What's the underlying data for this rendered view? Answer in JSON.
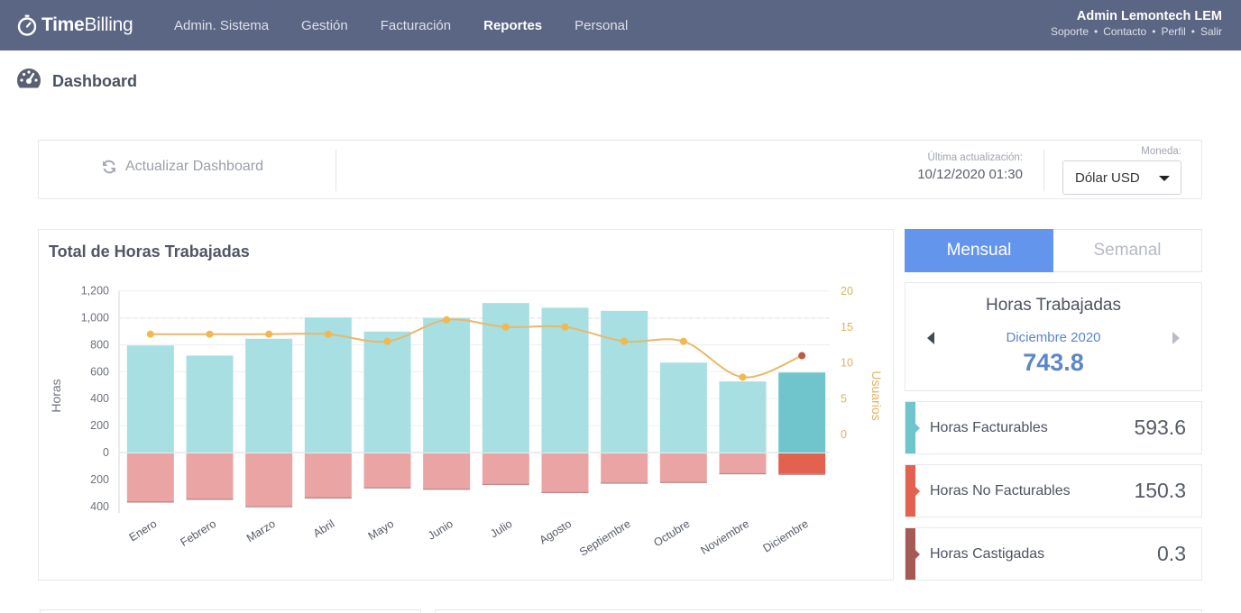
{
  "brand": {
    "name_bold": "Time",
    "name_regular": "Billing"
  },
  "nav": {
    "items": [
      {
        "label": "Admin. Sistema",
        "active": false
      },
      {
        "label": "Gestión",
        "active": false
      },
      {
        "label": "Facturación",
        "active": false
      },
      {
        "label": "Reportes",
        "active": true
      },
      {
        "label": "Personal",
        "active": false
      }
    ]
  },
  "user": {
    "name": "Admin Lemontech LEM",
    "links": [
      "Soporte",
      "Contacto",
      "Perfil",
      "Salir"
    ],
    "separator": "•"
  },
  "page": {
    "title": "Dashboard",
    "icon": "dashboard-gauge-icon"
  },
  "controls": {
    "refresh_label": "Actualizar Dashboard",
    "refresh_icon": "refresh-icon",
    "last_update_label": "Última actualización:",
    "last_update_value": "10/12/2020 01:30",
    "currency_label": "Moneda:",
    "currency_value": "Dólar USD"
  },
  "chart_card": {
    "title": "Total de Horas Trabajadas"
  },
  "chart_data": {
    "type": "bar",
    "title": "Total de Horas Trabajadas",
    "ylabel": "Horas",
    "y2label": "Usuarios",
    "categories": [
      "Enero",
      "Febrero",
      "Marzo",
      "Abril",
      "Mayo",
      "Junio",
      "Julio",
      "Agosto",
      "Septiembre",
      "Octubre",
      "Noviembre",
      "Diciembre"
    ],
    "y_ticks_positive": [
      "1,200",
      "1,000",
      "800",
      "600",
      "400",
      "200",
      "0"
    ],
    "y_ticks_negative": [
      "200",
      "400"
    ],
    "y2_ticks": [
      "20",
      "15",
      "10",
      "5",
      "0"
    ],
    "ylim": [
      -400,
      1200
    ],
    "y2lim": [
      0,
      20
    ],
    "series": [
      {
        "name": "Horas Facturables",
        "type": "bar",
        "color": "#a8dfe2",
        "values": [
          795,
          720,
          845,
          1003,
          898,
          1000,
          1110,
          1075,
          1052,
          668,
          528,
          594
        ]
      },
      {
        "name": "Horas No Facturables",
        "type": "bar",
        "color": "#eba4a4",
        "values": [
          -355,
          -335,
          -390,
          -325,
          -250,
          -260,
          -225,
          -285,
          -215,
          -210,
          -145,
          -150
        ]
      },
      {
        "name": "Horas Castigadas",
        "type": "bar",
        "color": "#b98a8a",
        "values": [
          -15,
          -10,
          -8,
          -12,
          -10,
          -8,
          -6,
          -10,
          -5,
          -6,
          -4,
          -1
        ]
      },
      {
        "name": "Usuarios",
        "type": "line",
        "color": "#e8b86a",
        "values": [
          14,
          14,
          14,
          14,
          13,
          16,
          15,
          15,
          13,
          13,
          8,
          11
        ]
      }
    ],
    "highlight_index": 11,
    "highlight_colors": {
      "positive": "#6fc5cb",
      "negative": "#e2614f",
      "point": "#c0574a"
    }
  },
  "period_toggle": {
    "monthly": "Mensual",
    "weekly": "Semanal"
  },
  "hours_card": {
    "title": "Horas Trabajadas",
    "period": "Diciembre 2020",
    "total": "743.8"
  },
  "stats": [
    {
      "label": "Horas Facturables",
      "value": "593.6",
      "color": "#6fc5cb"
    },
    {
      "label": "Horas No Facturables",
      "value": "150.3",
      "color": "#e2614f"
    },
    {
      "label": "Horas Castigadas",
      "value": "0.3",
      "color": "#a65a57"
    }
  ]
}
